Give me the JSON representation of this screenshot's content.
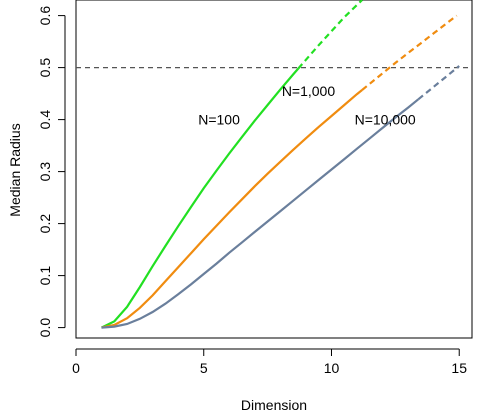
{
  "chart_data": {
    "type": "line",
    "xlabel": "Dimension",
    "ylabel": "Median Radius",
    "xlim": [
      0,
      15.5
    ],
    "ylim": [
      -0.02,
      0.63
    ],
    "x_ticks": [
      0,
      5,
      10,
      15
    ],
    "x_tick_labels": [
      "0",
      "5",
      "10",
      "15"
    ],
    "y_ticks": [
      0.0,
      0.1,
      0.2,
      0.3,
      0.4,
      0.5,
      0.6
    ],
    "y_tick_labels": [
      "0.0",
      "0.1",
      "0.2",
      "0.3",
      "0.4",
      "0.5",
      "0.6"
    ],
    "grid": false,
    "reference_line": {
      "y": 0.5,
      "style": "dashed",
      "color": "#555555"
    },
    "series": [
      {
        "name": "N=100",
        "label": "N=100",
        "label_at": {
          "x": 5.6,
          "y": 0.4
        },
        "color": "#22e022",
        "solid_until": 8.7,
        "x": [
          1,
          1.5,
          2,
          2.5,
          3,
          3.5,
          4,
          4.5,
          5,
          5.5,
          6,
          6.5,
          7,
          7.5,
          8,
          8.5,
          9,
          9.5,
          10,
          10.5,
          11.2
        ],
        "y": [
          0.0,
          0.012,
          0.04,
          0.078,
          0.118,
          0.157,
          0.195,
          0.232,
          0.268,
          0.302,
          0.335,
          0.367,
          0.398,
          0.428,
          0.458,
          0.487,
          0.515,
          0.543,
          0.57,
          0.597,
          0.63
        ]
      },
      {
        "name": "N=1,000",
        "label": "N=1,000",
        "label_at": {
          "x": 9.1,
          "y": 0.455
        },
        "color": "#f08c10",
        "solid_until": 11.2,
        "x": [
          1,
          1.5,
          2,
          2.5,
          3,
          3.5,
          4,
          4.5,
          5,
          5.5,
          6,
          6.5,
          7,
          7.5,
          8,
          8.5,
          9,
          9.5,
          10,
          10.5,
          11,
          11.5,
          12,
          12.5,
          13,
          13.5,
          14,
          14.5,
          14.9
        ],
        "y": [
          0.0,
          0.005,
          0.018,
          0.038,
          0.062,
          0.089,
          0.116,
          0.143,
          0.17,
          0.196,
          0.222,
          0.247,
          0.272,
          0.296,
          0.319,
          0.342,
          0.364,
          0.386,
          0.407,
          0.428,
          0.449,
          0.469,
          0.489,
          0.509,
          0.528,
          0.547,
          0.566,
          0.585,
          0.6
        ]
      },
      {
        "name": "N=10,000",
        "label": "N=10,000",
        "label_at": {
          "x": 12.1,
          "y": 0.4
        },
        "color": "#6a7f9c",
        "solid_until": 13.4,
        "x": [
          1,
          1.5,
          2,
          2.5,
          3,
          3.5,
          4,
          4.5,
          5,
          5.5,
          6,
          6.5,
          7,
          7.5,
          8,
          8.5,
          9,
          9.5,
          10,
          10.5,
          11,
          11.5,
          12,
          12.5,
          13,
          13.5,
          14,
          14.5,
          15
        ],
        "y": [
          0.0,
          0.002,
          0.007,
          0.017,
          0.03,
          0.046,
          0.064,
          0.083,
          0.103,
          0.123,
          0.144,
          0.164,
          0.184,
          0.204,
          0.224,
          0.244,
          0.264,
          0.284,
          0.304,
          0.324,
          0.344,
          0.364,
          0.384,
          0.404,
          0.423,
          0.443,
          0.463,
          0.483,
          0.503
        ]
      }
    ]
  }
}
